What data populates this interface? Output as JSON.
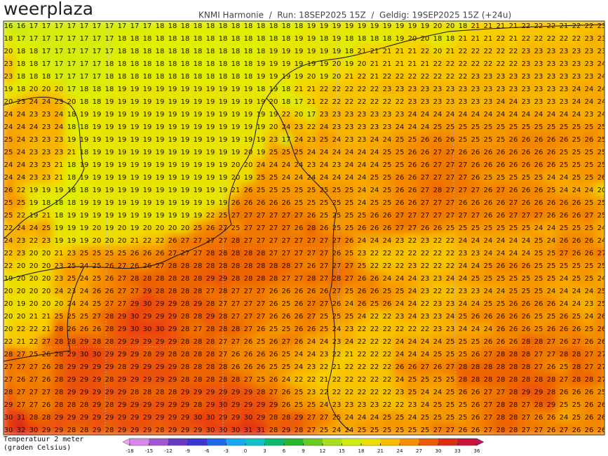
{
  "header": {
    "logo": "weerplaza",
    "info": "KNMI Harmonie  /  Run: 18SEP2025 15Z  /  Geldig: 19SEP2025 15Z (+24u)"
  },
  "legend": {
    "line1": "Temperatuur 2 meter",
    "line2": "(graden Celsius)",
    "ticks": [
      -18,
      -15,
      -12,
      -9,
      -6,
      -3,
      0,
      3,
      6,
      9,
      12,
      15,
      18,
      21,
      24,
      27,
      30,
      33,
      36
    ],
    "colors": [
      "#f0a0f0",
      "#c070e0",
      "#8040c0",
      "#5030c0",
      "#2040e0",
      "#2090f0",
      "#10c0f0",
      "#10c0a0",
      "#10b040",
      "#40c020",
      "#90d820",
      "#c0e820",
      "#e0ee00",
      "#f8d000",
      "#f8a800",
      "#f07800",
      "#e84010",
      "#d01818",
      "#c01060"
    ]
  },
  "grid": [
    [
      16,
      16,
      17,
      17,
      17,
      17,
      17,
      17,
      17,
      17,
      17,
      17,
      18,
      18,
      18,
      18,
      18,
      18,
      18,
      18,
      18,
      18,
      18,
      18,
      19,
      19,
      19,
      19,
      19,
      19,
      19,
      19,
      19,
      19,
      20,
      20,
      18,
      21,
      21,
      21,
      21,
      22,
      22,
      22,
      21,
      22,
      22,
      23
    ],
    [
      18,
      17,
      17,
      17,
      17,
      17,
      17,
      17,
      17,
      18,
      18,
      18,
      18,
      18,
      18,
      18,
      18,
      18,
      18,
      18,
      18,
      18,
      18,
      19,
      19,
      18,
      19,
      18,
      18,
      18,
      18,
      19,
      20,
      20,
      18,
      18,
      21,
      21,
      21,
      22,
      21,
      22,
      22,
      22,
      22,
      22,
      23,
      23
    ],
    [
      20,
      18,
      18,
      17,
      17,
      17,
      17,
      17,
      17,
      18,
      18,
      18,
      18,
      18,
      18,
      18,
      18,
      18,
      18,
      18,
      18,
      19,
      19,
      19,
      19,
      19,
      19,
      18,
      21,
      21,
      21,
      21,
      21,
      22,
      20,
      21,
      22,
      22,
      22,
      22,
      22,
      23,
      23,
      23,
      23,
      23,
      23,
      23
    ],
    [
      23,
      18,
      18,
      17,
      17,
      17,
      17,
      17,
      18,
      18,
      18,
      18,
      18,
      18,
      18,
      18,
      18,
      18,
      18,
      18,
      19,
      19,
      19,
      19,
      19,
      19,
      20,
      19,
      20,
      21,
      21,
      21,
      21,
      21,
      22,
      22,
      22,
      22,
      22,
      22,
      22,
      23,
      23,
      23,
      23,
      23,
      23,
      24
    ],
    [
      23,
      18,
      18,
      18,
      17,
      17,
      17,
      17,
      18,
      18,
      18,
      18,
      18,
      18,
      18,
      18,
      18,
      18,
      18,
      18,
      19,
      19,
      19,
      19,
      20,
      19,
      20,
      21,
      22,
      21,
      22,
      22,
      22,
      22,
      22,
      22,
      22,
      23,
      23,
      23,
      23,
      23,
      23,
      23,
      23,
      23,
      23,
      24
    ],
    [
      19,
      18,
      20,
      20,
      20,
      17,
      18,
      18,
      18,
      19,
      19,
      19,
      19,
      19,
      19,
      19,
      19,
      19,
      19,
      19,
      18,
      19,
      18,
      21,
      21,
      22,
      22,
      22,
      22,
      22,
      23,
      23,
      23,
      23,
      23,
      23,
      23,
      23,
      23,
      23,
      23,
      23,
      23,
      23,
      23,
      24,
      24,
      24
    ],
    [
      20,
      23,
      24,
      24,
      23,
      20,
      18,
      18,
      19,
      19,
      19,
      19,
      19,
      19,
      19,
      19,
      19,
      19,
      19,
      19,
      19,
      20,
      18,
      17,
      21,
      22,
      22,
      22,
      22,
      22,
      22,
      22,
      23,
      23,
      23,
      23,
      23,
      23,
      23,
      24,
      24,
      23,
      23,
      23,
      23,
      24,
      24,
      24
    ],
    [
      24,
      24,
      23,
      23,
      24,
      18,
      19,
      19,
      19,
      19,
      19,
      19,
      19,
      19,
      19,
      19,
      19,
      19,
      19,
      19,
      19,
      19,
      22,
      20,
      17,
      23,
      23,
      23,
      23,
      23,
      23,
      23,
      24,
      24,
      24,
      24,
      24,
      24,
      24,
      24,
      24,
      24,
      24,
      24,
      24,
      24,
      23,
      24
    ],
    [
      24,
      24,
      24,
      23,
      24,
      18,
      18,
      19,
      19,
      19,
      19,
      19,
      19,
      19,
      19,
      19,
      19,
      19,
      19,
      19,
      19,
      20,
      24,
      23,
      22,
      24,
      23,
      23,
      23,
      23,
      23,
      24,
      24,
      24,
      25,
      25,
      25,
      25,
      25,
      25,
      25,
      25,
      25,
      25,
      25,
      25,
      25,
      25
    ],
    [
      25,
      24,
      23,
      23,
      23,
      19,
      19,
      19,
      19,
      19,
      19,
      19,
      19,
      19,
      19,
      19,
      19,
      19,
      19,
      19,
      19,
      23,
      17,
      24,
      23,
      25,
      24,
      23,
      23,
      24,
      24,
      25,
      25,
      26,
      26,
      26,
      25,
      25,
      25,
      25,
      26,
      26,
      26,
      26,
      26,
      25,
      26,
      25
    ],
    [
      25,
      24,
      23,
      23,
      23,
      21,
      18,
      19,
      19,
      19,
      19,
      19,
      19,
      19,
      19,
      19,
      19,
      19,
      19,
      20,
      19,
      25,
      25,
      25,
      24,
      24,
      24,
      24,
      24,
      24,
      25,
      25,
      26,
      26,
      27,
      27,
      26,
      26,
      26,
      26,
      26,
      26,
      26,
      26,
      25,
      25,
      25,
      25
    ],
    [
      24,
      24,
      23,
      23,
      21,
      18,
      19,
      19,
      19,
      19,
      19,
      19,
      19,
      19,
      19,
      19,
      19,
      19,
      20,
      20,
      24,
      24,
      24,
      24,
      23,
      24,
      23,
      24,
      24,
      24,
      25,
      25,
      26,
      26,
      27,
      27,
      27,
      26,
      26,
      26,
      26,
      26,
      26,
      26,
      25,
      25,
      25,
      25
    ],
    [
      24,
      24,
      23,
      23,
      21,
      18,
      19,
      19,
      19,
      19,
      19,
      19,
      19,
      19,
      19,
      19,
      19,
      19,
      20,
      19,
      25,
      25,
      24,
      24,
      24,
      24,
      24,
      24,
      24,
      25,
      25,
      26,
      26,
      27,
      27,
      27,
      27,
      26,
      25,
      25,
      25,
      25,
      25,
      24,
      24,
      25,
      25,
      26
    ],
    [
      26,
      22,
      19,
      19,
      19,
      18,
      18,
      19,
      19,
      19,
      19,
      19,
      19,
      19,
      19,
      19,
      19,
      19,
      21,
      26,
      25,
      25,
      25,
      25,
      25,
      25,
      25,
      25,
      24,
      24,
      25,
      26,
      26,
      27,
      28,
      27,
      27,
      27,
      26,
      27,
      26,
      26,
      26,
      25,
      24,
      24,
      24,
      20
    ],
    [
      25,
      25,
      19,
      18,
      18,
      18,
      19,
      19,
      19,
      19,
      19,
      19,
      19,
      19,
      19,
      19,
      19,
      19,
      26,
      26,
      26,
      26,
      26,
      25,
      25,
      25,
      25,
      25,
      24,
      25,
      25,
      26,
      26,
      27,
      27,
      27,
      26,
      26,
      26,
      26,
      27,
      26,
      26,
      26,
      26,
      26,
      25,
      25
    ],
    [
      25,
      22,
      19,
      21,
      18,
      19,
      19,
      19,
      19,
      19,
      19,
      19,
      19,
      19,
      19,
      19,
      22,
      25,
      27,
      27,
      27,
      27,
      27,
      27,
      26,
      25,
      25,
      25,
      25,
      26,
      26,
      27,
      27,
      27,
      27,
      27,
      27,
      27,
      26,
      26,
      27,
      27,
      27,
      26,
      26,
      26,
      27,
      25
    ],
    [
      22,
      24,
      24,
      25,
      19,
      19,
      19,
      20,
      19,
      20,
      19,
      20,
      20,
      20,
      20,
      25,
      26,
      27,
      25,
      27,
      27,
      27,
      27,
      26,
      28,
      26,
      25,
      25,
      26,
      26,
      26,
      27,
      27,
      26,
      26,
      25,
      25,
      25,
      25,
      25,
      25,
      25,
      24,
      24,
      25,
      25,
      25,
      24
    ],
    [
      24,
      23,
      22,
      23,
      19,
      19,
      19,
      20,
      20,
      20,
      21,
      22,
      22,
      26,
      27,
      27,
      27,
      27,
      28,
      27,
      27,
      27,
      27,
      27,
      27,
      27,
      27,
      26,
      24,
      24,
      24,
      23,
      22,
      23,
      22,
      22,
      24,
      24,
      24,
      24,
      24,
      24,
      25,
      24,
      26,
      26,
      26,
      24
    ],
    [
      22,
      23,
      20,
      20,
      21,
      23,
      25,
      25,
      25,
      25,
      26,
      26,
      26,
      27,
      27,
      27,
      28,
      28,
      28,
      28,
      28,
      27,
      27,
      27,
      27,
      27,
      26,
      25,
      23,
      22,
      22,
      22,
      22,
      22,
      22,
      22,
      23,
      23,
      24,
      24,
      24,
      24,
      25,
      25,
      27,
      26,
      26,
      27
    ],
    [
      22,
      20,
      20,
      20,
      23,
      25,
      24,
      25,
      26,
      27,
      26,
      26,
      27,
      28,
      28,
      28,
      28,
      28,
      28,
      28,
      28,
      28,
      28,
      27,
      26,
      27,
      27,
      27,
      25,
      22,
      22,
      22,
      23,
      22,
      22,
      22,
      24,
      24,
      25,
      26,
      26,
      26,
      25,
      25,
      25,
      25,
      25,
      25
    ],
    [
      19,
      20,
      20,
      20,
      23,
      25,
      24,
      25,
      26,
      27,
      28,
      28,
      28,
      28,
      28,
      28,
      29,
      29,
      28,
      28,
      28,
      28,
      27,
      27,
      28,
      27,
      28,
      27,
      26,
      26,
      24,
      24,
      24,
      23,
      23,
      24,
      24,
      25,
      25,
      25,
      25,
      25,
      25,
      25,
      24,
      25,
      25,
      24
    ],
    [
      20,
      20,
      20,
      20,
      24,
      23,
      24,
      26,
      26,
      27,
      27,
      29,
      28,
      28,
      28,
      28,
      27,
      28,
      27,
      27,
      27,
      26,
      26,
      26,
      26,
      26,
      27,
      25,
      26,
      26,
      25,
      25,
      24,
      23,
      22,
      22,
      23,
      23,
      24,
      24,
      25,
      25,
      25,
      24,
      24,
      24,
      24,
      25
    ],
    [
      20,
      19,
      20,
      20,
      20,
      24,
      24,
      25,
      27,
      27,
      29,
      30,
      29,
      29,
      28,
      29,
      28,
      27,
      27,
      27,
      27,
      26,
      25,
      26,
      27,
      27,
      26,
      24,
      26,
      25,
      26,
      24,
      24,
      22,
      23,
      23,
      24,
      24,
      25,
      25,
      26,
      26,
      26,
      26,
      24,
      24,
      23,
      25
    ],
    [
      20,
      20,
      21,
      21,
      25,
      25,
      25,
      27,
      28,
      29,
      30,
      29,
      29,
      29,
      28,
      28,
      29,
      28,
      27,
      27,
      27,
      26,
      26,
      26,
      27,
      25,
      25,
      25,
      24,
      22,
      22,
      23,
      24,
      23,
      23,
      24,
      25,
      26,
      26,
      26,
      26,
      26,
      25,
      25,
      26,
      25,
      24,
      26
    ],
    [
      20,
      22,
      22,
      21,
      28,
      26,
      26,
      26,
      28,
      29,
      30,
      30,
      30,
      29,
      28,
      27,
      28,
      28,
      28,
      27,
      26,
      25,
      25,
      26,
      26,
      25,
      24,
      23,
      22,
      22,
      22,
      22,
      22,
      22,
      23,
      23,
      24,
      24,
      24,
      26,
      26,
      26,
      25,
      26,
      26,
      26,
      25,
      26
    ],
    [
      22,
      21,
      22,
      27,
      28,
      28,
      29,
      28,
      28,
      29,
      29,
      29,
      29,
      29,
      28,
      28,
      28,
      27,
      27,
      26,
      25,
      26,
      27,
      26,
      24,
      24,
      23,
      24,
      22,
      22,
      22,
      24,
      24,
      24,
      24,
      25,
      25,
      25,
      26,
      26,
      26,
      28,
      28,
      27,
      26,
      27,
      26,
      26
    ],
    [
      28,
      27,
      25,
      26,
      28,
      29,
      30,
      30,
      29,
      29,
      29,
      28,
      29,
      28,
      28,
      28,
      28,
      27,
      26,
      26,
      26,
      26,
      25,
      24,
      24,
      23,
      22,
      21,
      22,
      22,
      22,
      24,
      24,
      24,
      25,
      25,
      25,
      26,
      27,
      28,
      28,
      28,
      27,
      27,
      28,
      28,
      27,
      27
    ],
    [
      27,
      27,
      27,
      26,
      28,
      29,
      29,
      29,
      29,
      28,
      29,
      29,
      29,
      29,
      28,
      28,
      28,
      28,
      26,
      26,
      26,
      25,
      25,
      24,
      23,
      22,
      21,
      22,
      22,
      22,
      22,
      26,
      26,
      27,
      26,
      27,
      28,
      28,
      28,
      28,
      28,
      28,
      27,
      26,
      25,
      28,
      27,
      27
    ],
    [
      27,
      26,
      27,
      26,
      28,
      29,
      29,
      29,
      28,
      29,
      29,
      29,
      29,
      29,
      28,
      28,
      28,
      28,
      28,
      27,
      25,
      26,
      24,
      22,
      22,
      21,
      22,
      22,
      22,
      22,
      22,
      24,
      25,
      25,
      25,
      25,
      28,
      28,
      28,
      28,
      28,
      28,
      28,
      28,
      27,
      28,
      28,
      27
    ],
    [
      28,
      27,
      27,
      27,
      28,
      29,
      29,
      29,
      29,
      29,
      28,
      28,
      28,
      28,
      29,
      29,
      29,
      29,
      29,
      29,
      28,
      27,
      26,
      25,
      23,
      22,
      22,
      22,
      22,
      22,
      22,
      23,
      25,
      24,
      24,
      25,
      26,
      26,
      27,
      27,
      28,
      29,
      29,
      28,
      26,
      26,
      26,
      25
    ],
    [
      29,
      27,
      27,
      26,
      28,
      28,
      28,
      29,
      28,
      29,
      29,
      29,
      29,
      29,
      29,
      28,
      29,
      30,
      29,
      29,
      29,
      29,
      26,
      25,
      25,
      24,
      23,
      23,
      23,
      23,
      22,
      22,
      23,
      24,
      25,
      25,
      25,
      26,
      27,
      28,
      28,
      27,
      28,
      29,
      25,
      25,
      26,
      26
    ],
    [
      30,
      31,
      28,
      28,
      29,
      29,
      29,
      29,
      29,
      29,
      29,
      29,
      29,
      29,
      29,
      30,
      30,
      29,
      29,
      30,
      29,
      28,
      28,
      29,
      27,
      27,
      25,
      24,
      24,
      24,
      25,
      25,
      24,
      25,
      25,
      25,
      25,
      26,
      27,
      28,
      28,
      27,
      26,
      26,
      24,
      25,
      26,
      26
    ],
    [
      30,
      32,
      30,
      29,
      29,
      28,
      28,
      29,
      28,
      29,
      29,
      29,
      28,
      29,
      29,
      29,
      30,
      30,
      30,
      31,
      31,
      28,
      29,
      28,
      27,
      25,
      24,
      24,
      25,
      25,
      25,
      25,
      25,
      25,
      27,
      27,
      26,
      26,
      27,
      28,
      28,
      27,
      27,
      26,
      27,
      26,
      26,
      26
    ]
  ]
}
